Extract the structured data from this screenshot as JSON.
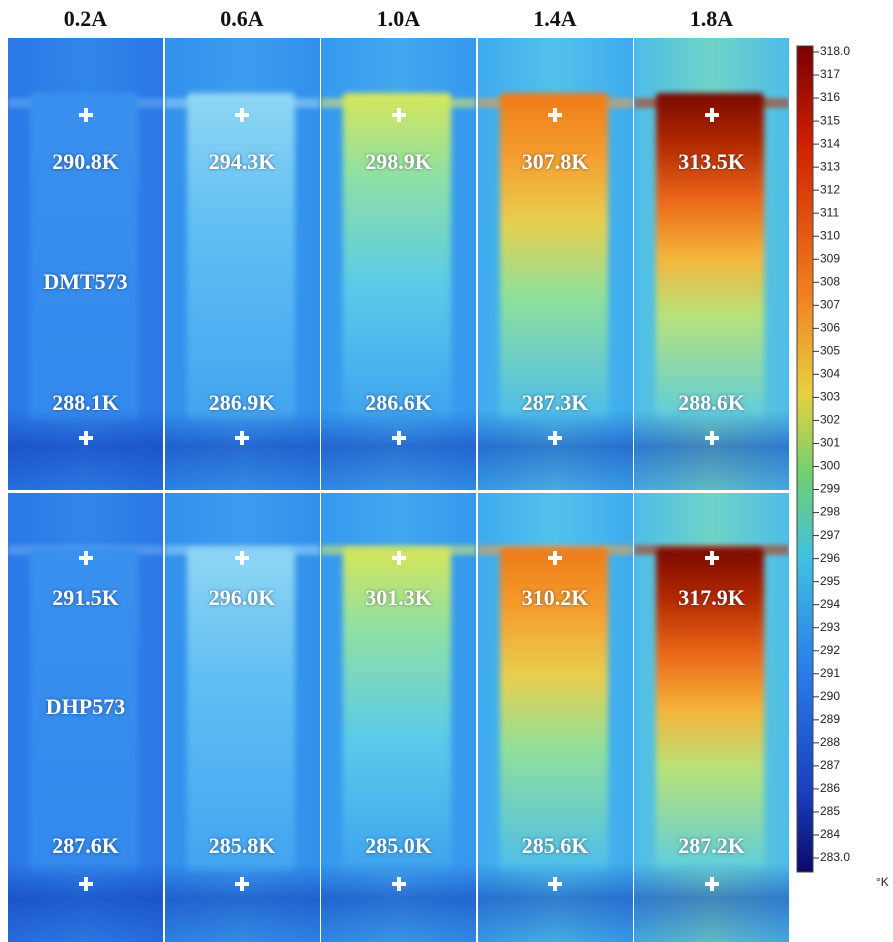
{
  "columns": [
    "0.2A",
    "0.6A",
    "1.0A",
    "1.4A",
    "1.8A"
  ],
  "rows": [
    {
      "label": "DMT573",
      "top": [
        "290.8K",
        "294.3K",
        "298.9K",
        "307.8K",
        "313.5K"
      ],
      "bottom": [
        "288.1K",
        "286.9K",
        "286.6K",
        "287.3K",
        "288.6K"
      ]
    },
    {
      "label": "DHP573",
      "top": [
        "291.5K",
        "296.0K",
        "301.3K",
        "310.2K",
        "317.9K"
      ],
      "bottom": [
        "287.6K",
        "285.8K",
        "285.0K",
        "285.6K",
        "287.2K"
      ]
    }
  ],
  "colorbar": {
    "range": [
      283,
      318
    ],
    "unit": "°K",
    "ticks": [
      {
        "value": 318,
        "label": "318.0"
      },
      317,
      316,
      315,
      314,
      313,
      312,
      311,
      310,
      309,
      308,
      307,
      306,
      305,
      304,
      303,
      302,
      301,
      300,
      299,
      298,
      297,
      296,
      295,
      294,
      293,
      292,
      291,
      290,
      289,
      288,
      287,
      286,
      285,
      284,
      {
        "value": 283,
        "label": "283.0"
      }
    ]
  }
}
